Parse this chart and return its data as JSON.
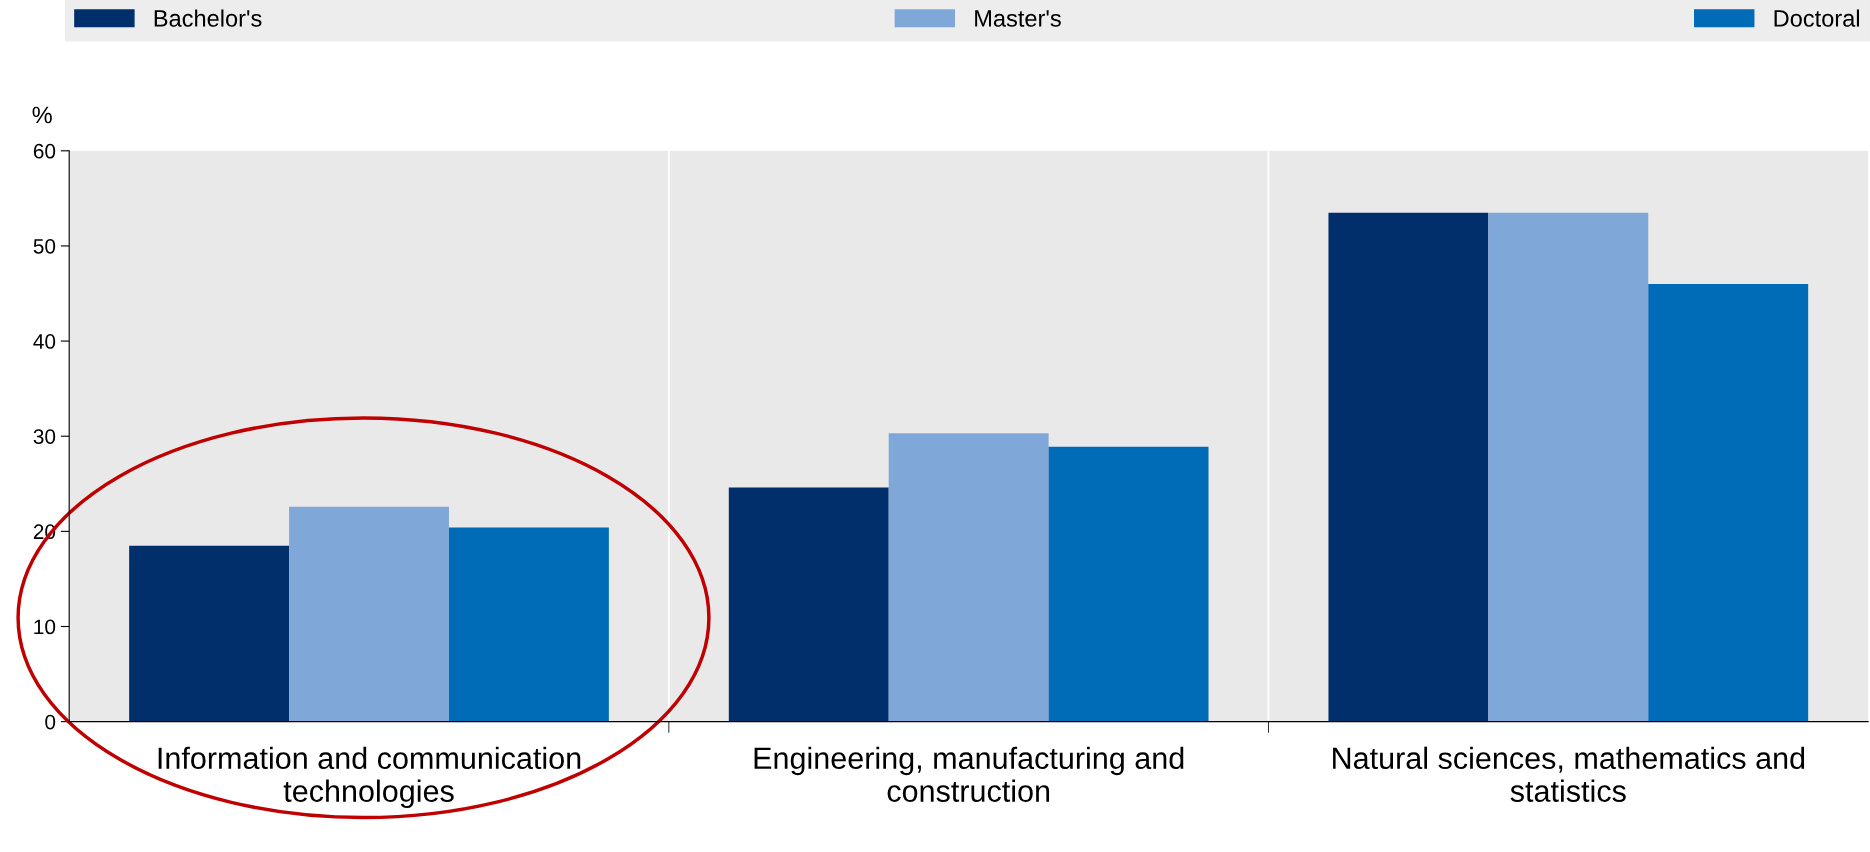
{
  "chart_data": {
    "type": "bar",
    "ylabel": "%",
    "categories": [
      "Information and communication technologies",
      "Engineering, manufacturing and construction",
      "Natural sciences, mathematics and statistics"
    ],
    "series": [
      {
        "name": "Bachelor's",
        "color": "#002f6c",
        "values": [
          18.5,
          24.6,
          53.5
        ]
      },
      {
        "name": "Master's",
        "color": "#7fa8d9",
        "values": [
          22.6,
          30.3,
          53.5
        ]
      },
      {
        "name": "Doctoral",
        "color": "#006bb6",
        "values": [
          20.4,
          28.9,
          46.0
        ]
      }
    ],
    "ylim": [
      0,
      60
    ],
    "yticks": [
      0,
      10,
      20,
      30,
      40,
      50,
      60
    ],
    "grid": false,
    "legend": "top"
  }
}
